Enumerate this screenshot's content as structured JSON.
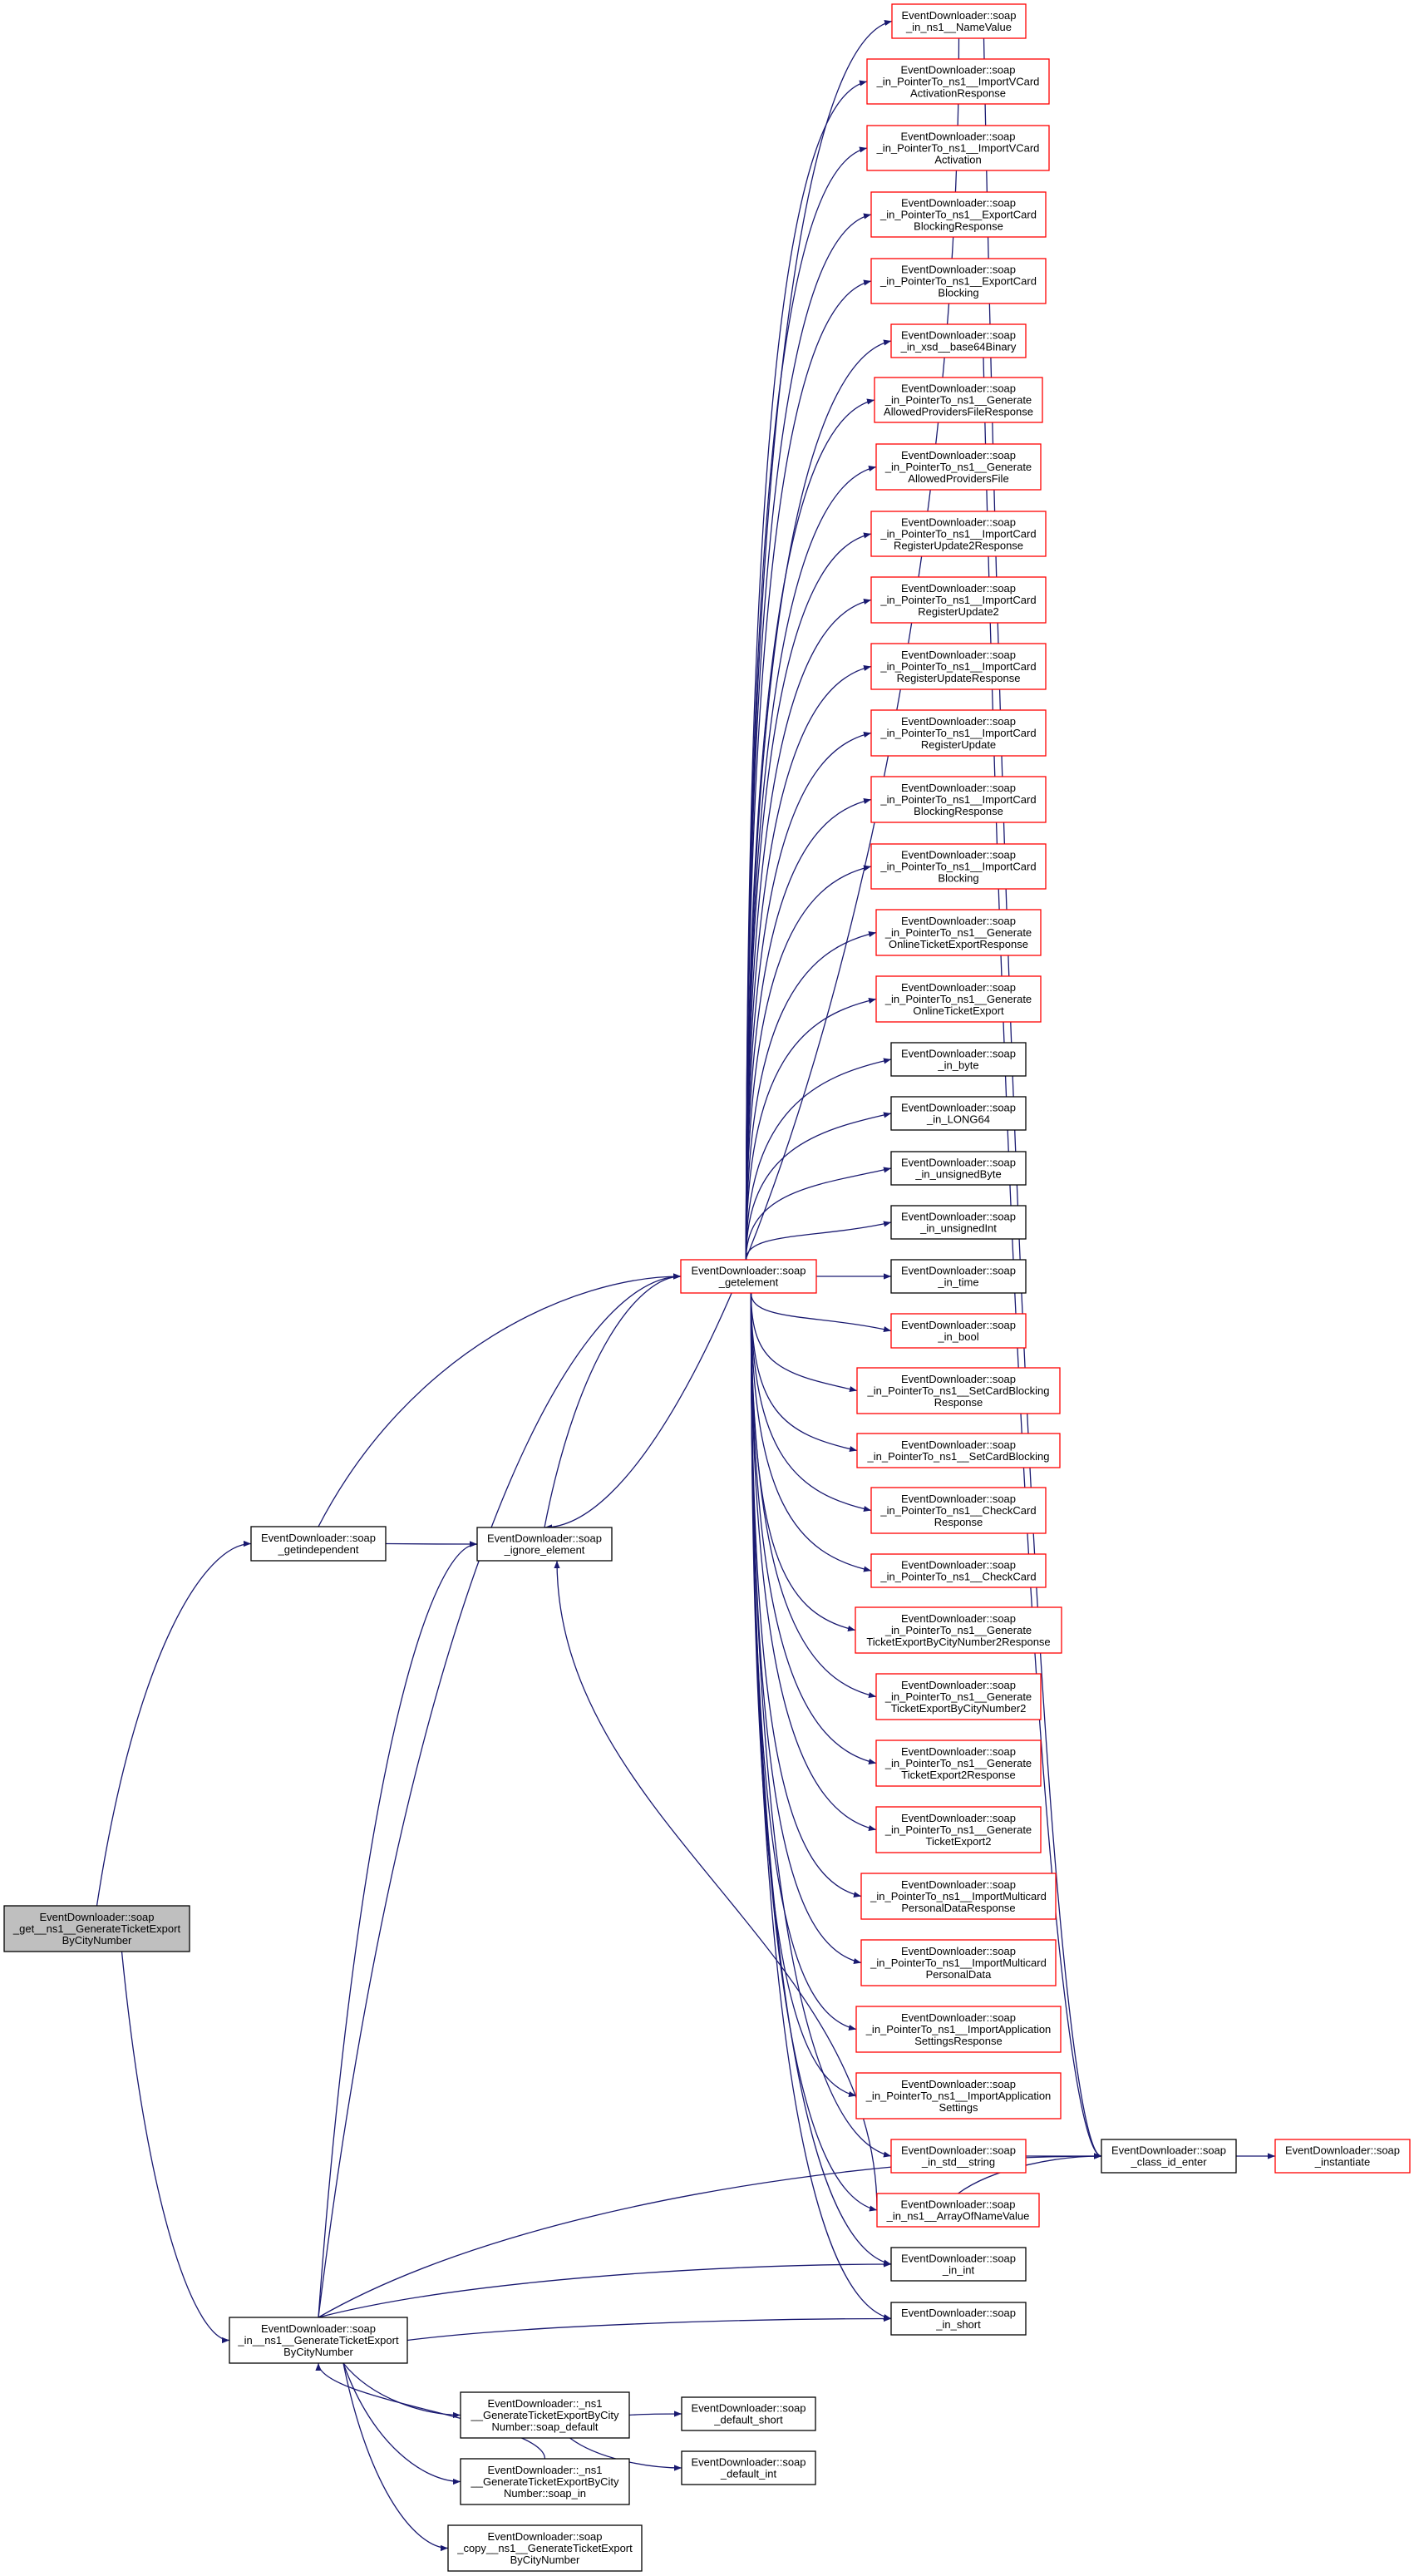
{
  "colors": {
    "edge": "#191970",
    "border_default": "#000000",
    "border_truncated": "#ff0000",
    "root_fill": "#bfbfbf",
    "node_fill": "#ffffff"
  },
  "nodes": [
    {
      "id": "root",
      "style": "root",
      "lines": [
        "EventDownloader::soap",
        "_get__ns1__GenerateTicketExport",
        "ByCityNumber"
      ]
    },
    {
      "id": "getindep",
      "style": "plain",
      "lines": [
        "EventDownloader::soap",
        "_getindependent"
      ]
    },
    {
      "id": "ignore",
      "style": "plain",
      "lines": [
        "EventDownloader::soap",
        "_ignore_element"
      ]
    },
    {
      "id": "getelement",
      "style": "red",
      "lines": [
        "EventDownloader::soap",
        "_getelement"
      ]
    },
    {
      "id": "in_bcn",
      "style": "plain",
      "lines": [
        "EventDownloader::soap",
        "_in__ns1__GenerateTicketExport",
        "ByCityNumber"
      ]
    },
    {
      "id": "soap_default",
      "style": "plain",
      "lines": [
        "EventDownloader::_ns1",
        "__GenerateTicketExportByCity",
        "Number::soap_default"
      ]
    },
    {
      "id": "soap_in",
      "style": "plain",
      "lines": [
        "EventDownloader::_ns1",
        "__GenerateTicketExportByCity",
        "Number::soap_in"
      ]
    },
    {
      "id": "copy",
      "style": "plain",
      "lines": [
        "EventDownloader::soap",
        "_copy__ns1__GenerateTicketExport",
        "ByCityNumber"
      ]
    },
    {
      "id": "default_short",
      "style": "plain",
      "lines": [
        "EventDownloader::soap",
        "_default_short"
      ]
    },
    {
      "id": "default_int",
      "style": "plain",
      "lines": [
        "EventDownloader::soap",
        "_default_int"
      ]
    },
    {
      "id": "class_id_enter",
      "style": "plain",
      "lines": [
        "EventDownloader::soap",
        "_class_id_enter"
      ]
    },
    {
      "id": "instantiate",
      "style": "red",
      "lines": [
        "EventDownloader::soap",
        "_instantiate"
      ]
    },
    {
      "id": "NameValue",
      "style": "red",
      "lines": [
        "EventDownloader::soap",
        "_in_ns1__NameValue"
      ]
    },
    {
      "id": "VCardActResp",
      "style": "red",
      "lines": [
        "EventDownloader::soap",
        "_in_PointerTo_ns1__ImportVCard",
        "ActivationResponse"
      ]
    },
    {
      "id": "VCardAct",
      "style": "red",
      "lines": [
        "EventDownloader::soap",
        "_in_PointerTo_ns1__ImportVCard",
        "Activation"
      ]
    },
    {
      "id": "ExpBlkResp",
      "style": "red",
      "lines": [
        "EventDownloader::soap",
        "_in_PointerTo_ns1__ExportCard",
        "BlockingResponse"
      ]
    },
    {
      "id": "ExpBlk",
      "style": "red",
      "lines": [
        "EventDownloader::soap",
        "_in_PointerTo_ns1__ExportCard",
        "Blocking"
      ]
    },
    {
      "id": "base64",
      "style": "red",
      "lines": [
        "EventDownloader::soap",
        "_in_xsd__base64Binary"
      ]
    },
    {
      "id": "AllowedResp",
      "style": "red",
      "lines": [
        "EventDownloader::soap",
        "_in_PointerTo_ns1__Generate",
        "AllowedProvidersFileResponse"
      ]
    },
    {
      "id": "Allowed",
      "style": "red",
      "lines": [
        "EventDownloader::soap",
        "_in_PointerTo_ns1__Generate",
        "AllowedProvidersFile"
      ]
    },
    {
      "id": "RU2Resp",
      "style": "red",
      "lines": [
        "EventDownloader::soap",
        "_in_PointerTo_ns1__ImportCard",
        "RegisterUpdate2Response"
      ]
    },
    {
      "id": "RU2",
      "style": "red",
      "lines": [
        "EventDownloader::soap",
        "_in_PointerTo_ns1__ImportCard",
        "RegisterUpdate2"
      ]
    },
    {
      "id": "RUResp",
      "style": "red",
      "lines": [
        "EventDownloader::soap",
        "_in_PointerTo_ns1__ImportCard",
        "RegisterUpdateResponse"
      ]
    },
    {
      "id": "RU",
      "style": "red",
      "lines": [
        "EventDownloader::soap",
        "_in_PointerTo_ns1__ImportCard",
        "RegisterUpdate"
      ]
    },
    {
      "id": "BlkResp",
      "style": "red",
      "lines": [
        "EventDownloader::soap",
        "_in_PointerTo_ns1__ImportCard",
        "BlockingResponse"
      ]
    },
    {
      "id": "Blk",
      "style": "red",
      "lines": [
        "EventDownloader::soap",
        "_in_PointerTo_ns1__ImportCard",
        "Blocking"
      ]
    },
    {
      "id": "OnlineResp",
      "style": "red",
      "lines": [
        "EventDownloader::soap",
        "_in_PointerTo_ns1__Generate",
        "OnlineTicketExportResponse"
      ]
    },
    {
      "id": "Online",
      "style": "red",
      "lines": [
        "EventDownloader::soap",
        "_in_PointerTo_ns1__Generate",
        "OnlineTicketExport"
      ]
    },
    {
      "id": "byte",
      "style": "plain",
      "lines": [
        "EventDownloader::soap",
        "_in_byte"
      ]
    },
    {
      "id": "LONG64",
      "style": "plain",
      "lines": [
        "EventDownloader::soap",
        "_in_LONG64"
      ]
    },
    {
      "id": "unsignedByte",
      "style": "plain",
      "lines": [
        "EventDownloader::soap",
        "_in_unsignedByte"
      ]
    },
    {
      "id": "unsignedInt",
      "style": "plain",
      "lines": [
        "EventDownloader::soap",
        "_in_unsignedInt"
      ]
    },
    {
      "id": "time",
      "style": "plain",
      "lines": [
        "EventDownloader::soap",
        "_in_time"
      ]
    },
    {
      "id": "bool",
      "style": "red",
      "lines": [
        "EventDownloader::soap",
        "_in_bool"
      ]
    },
    {
      "id": "SCBResp",
      "style": "red",
      "lines": [
        "EventDownloader::soap",
        "_in_PointerTo_ns1__SetCardBlocking",
        "Response"
      ]
    },
    {
      "id": "SCB",
      "style": "red",
      "lines": [
        "EventDownloader::soap",
        "_in_PointerTo_ns1__SetCardBlocking"
      ]
    },
    {
      "id": "CCResp",
      "style": "red",
      "lines": [
        "EventDownloader::soap",
        "_in_PointerTo_ns1__CheckCard",
        "Response"
      ]
    },
    {
      "id": "CC",
      "style": "red",
      "lines": [
        "EventDownloader::soap",
        "_in_PointerTo_ns1__CheckCard"
      ]
    },
    {
      "id": "TBCN2Resp",
      "style": "red",
      "lines": [
        "EventDownloader::soap",
        "_in_PointerTo_ns1__Generate",
        "TicketExportByCityNumber2Response"
      ]
    },
    {
      "id": "TBCN2",
      "style": "red",
      "lines": [
        "EventDownloader::soap",
        "_in_PointerTo_ns1__Generate",
        "TicketExportByCityNumber2"
      ]
    },
    {
      "id": "TE2Resp",
      "style": "red",
      "lines": [
        "EventDownloader::soap",
        "_in_PointerTo_ns1__Generate",
        "TicketExport2Response"
      ]
    },
    {
      "id": "TE2",
      "style": "red",
      "lines": [
        "EventDownloader::soap",
        "_in_PointerTo_ns1__Generate",
        "TicketExport2"
      ]
    },
    {
      "id": "MCResp",
      "style": "red",
      "lines": [
        "EventDownloader::soap",
        "_in_PointerTo_ns1__ImportMulticard",
        "PersonalDataResponse"
      ]
    },
    {
      "id": "MC",
      "style": "red",
      "lines": [
        "EventDownloader::soap",
        "_in_PointerTo_ns1__ImportMulticard",
        "PersonalData"
      ]
    },
    {
      "id": "ASResp",
      "style": "red",
      "lines": [
        "EventDownloader::soap",
        "_in_PointerTo_ns1__ImportApplication",
        "SettingsResponse"
      ]
    },
    {
      "id": "AS",
      "style": "red",
      "lines": [
        "EventDownloader::soap",
        "_in_PointerTo_ns1__ImportApplication",
        "Settings"
      ]
    },
    {
      "id": "std_string",
      "style": "red",
      "lines": [
        "EventDownloader::soap",
        "_in_std__string"
      ]
    },
    {
      "id": "ArrayNV",
      "style": "red",
      "lines": [
        "EventDownloader::soap",
        "_in_ns1__ArrayOfNameValue"
      ]
    },
    {
      "id": "in_int",
      "style": "plain",
      "lines": [
        "EventDownloader::soap",
        "_in_int"
      ]
    },
    {
      "id": "in_short",
      "style": "plain",
      "lines": [
        "EventDownloader::soap",
        "_in_short"
      ]
    }
  ],
  "edges": [
    [
      "root",
      "getindep"
    ],
    [
      "root",
      "in_bcn"
    ],
    [
      "getindep",
      "ignore"
    ],
    [
      "getindep",
      "getelement"
    ],
    [
      "ignore",
      "getelement"
    ],
    [
      "NameValue",
      "ignore"
    ],
    [
      "ArrayNV",
      "ignore"
    ],
    [
      "in_bcn",
      "ignore"
    ],
    [
      "in_bcn",
      "getelement"
    ],
    [
      "in_bcn",
      "in_int"
    ],
    [
      "in_bcn",
      "in_short"
    ],
    [
      "in_bcn",
      "class_id_enter"
    ],
    [
      "in_bcn",
      "soap_default"
    ],
    [
      "in_bcn",
      "soap_in"
    ],
    [
      "soap_in",
      "in_bcn"
    ],
    [
      "in_bcn",
      "copy"
    ],
    [
      "soap_default",
      "default_short"
    ],
    [
      "soap_default",
      "default_int"
    ],
    [
      "NameValue",
      "class_id_enter"
    ],
    [
      "base64",
      "class_id_enter"
    ],
    [
      "std_string",
      "class_id_enter"
    ],
    [
      "ArrayNV",
      "class_id_enter"
    ],
    [
      "class_id_enter",
      "instantiate"
    ]
  ],
  "getelement_callees": [
    "NameValue",
    "VCardActResp",
    "VCardAct",
    "ExpBlkResp",
    "ExpBlk",
    "base64",
    "AllowedResp",
    "Allowed",
    "RU2Resp",
    "RU2",
    "RUResp",
    "RU",
    "BlkResp",
    "Blk",
    "OnlineResp",
    "Online",
    "byte",
    "LONG64",
    "unsignedByte",
    "unsignedInt",
    "time",
    "bool",
    "SCBResp",
    "SCB",
    "CCResp",
    "CC",
    "TBCN2Resp",
    "TBCN2",
    "TE2Resp",
    "TE2",
    "MCResp",
    "MC",
    "ASResp",
    "AS",
    "std_string",
    "ArrayNV",
    "in_int",
    "in_short"
  ]
}
